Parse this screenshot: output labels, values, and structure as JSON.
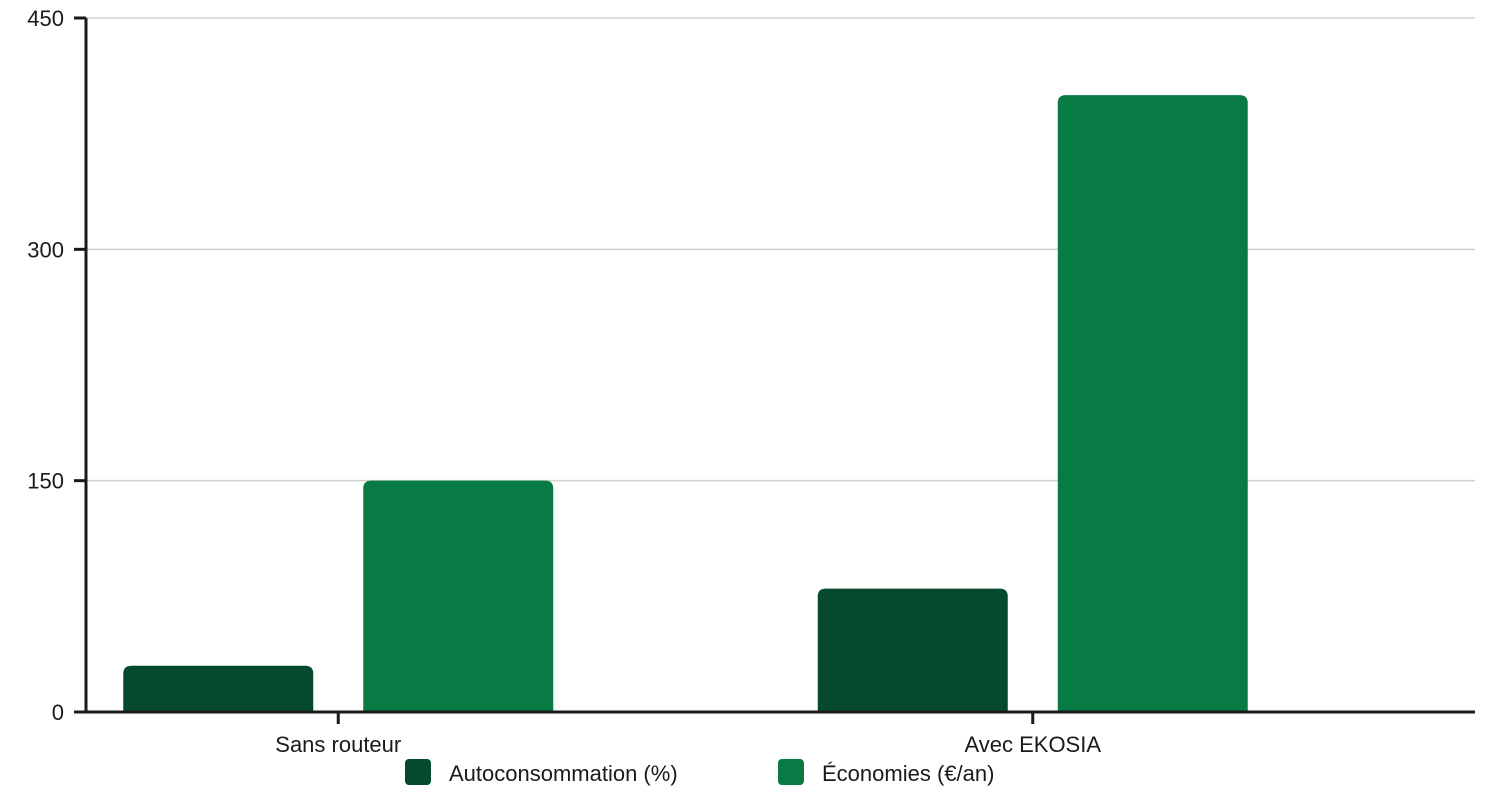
{
  "chart_data": {
    "type": "bar",
    "categories": [
      "Sans routeur",
      "Avec EKOSIA"
    ],
    "series": [
      {
        "name": "Autoconsommation (%)",
        "values": [
          30,
          80
        ],
        "color": "#054a2c"
      },
      {
        "name": "Économies (€/an)",
        "values": [
          150,
          400
        ],
        "color": "#087b45"
      }
    ],
    "y_ticks": [
      0,
      150,
      300,
      450
    ],
    "ylim": [
      0,
      450
    ],
    "grid": true,
    "legend_position": "bottom"
  }
}
